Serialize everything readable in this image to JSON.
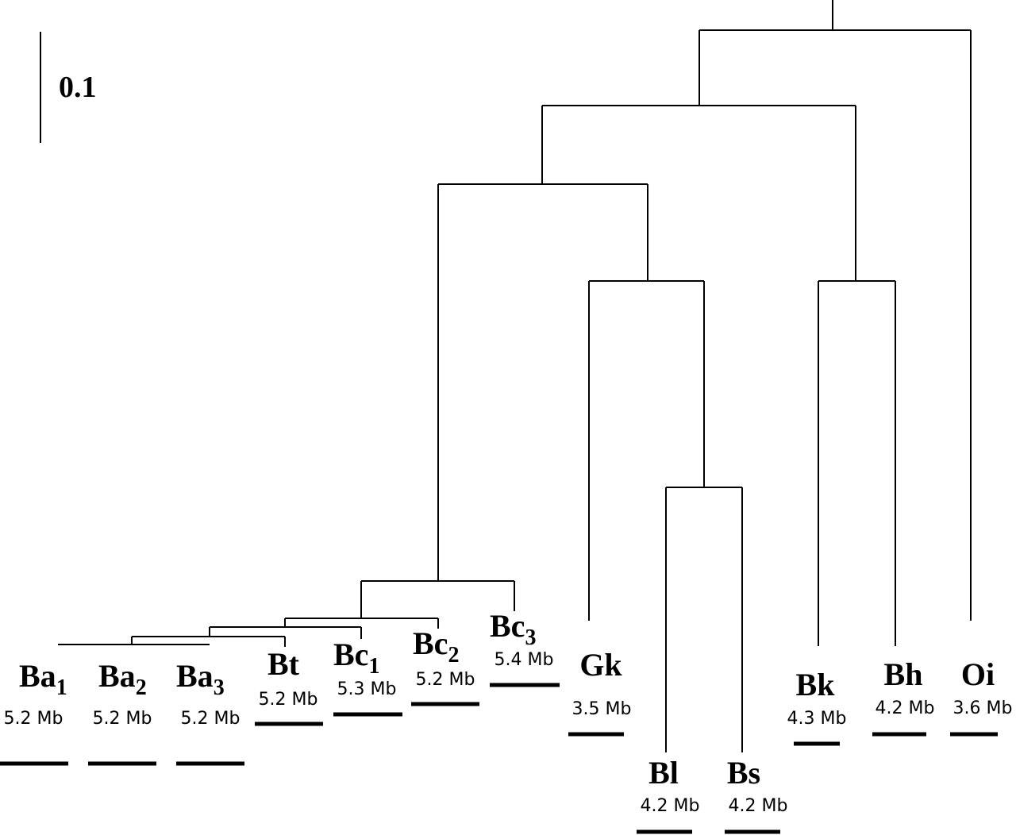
{
  "scale": {
    "label": "0.1"
  },
  "taxa": [
    {
      "id": "ba1",
      "name": "Ba",
      "sub": "1",
      "size": "5.2 Mb"
    },
    {
      "id": "ba2",
      "name": "Ba",
      "sub": "2",
      "size": "5.2 Mb"
    },
    {
      "id": "ba3",
      "name": "Ba",
      "sub": "3",
      "size": "5.2 Mb"
    },
    {
      "id": "bt",
      "name": "Bt",
      "sub": "",
      "size": "5.2 Mb"
    },
    {
      "id": "bc1",
      "name": "Bc",
      "sub": "1",
      "size": "5.3 Mb"
    },
    {
      "id": "bc2",
      "name": "Bc",
      "sub": "2",
      "size": "5.2 Mb"
    },
    {
      "id": "bc3",
      "name": "Bc",
      "sub": "3",
      "size": "5.4 Mb"
    },
    {
      "id": "gk",
      "name": "Gk",
      "sub": "",
      "size": "3.5 Mb"
    },
    {
      "id": "bl",
      "name": "Bl",
      "sub": "",
      "size": "4.2 Mb"
    },
    {
      "id": "bs",
      "name": "Bs",
      "sub": "",
      "size": "4.2 Mb"
    },
    {
      "id": "bk",
      "name": "Bk",
      "sub": "",
      "size": "4.3 Mb"
    },
    {
      "id": "bh",
      "name": "Bh",
      "sub": "",
      "size": "4.2 Mb"
    },
    {
      "id": "oi",
      "name": "Oi",
      "sub": "",
      "size": "3.6 Mb"
    }
  ]
}
